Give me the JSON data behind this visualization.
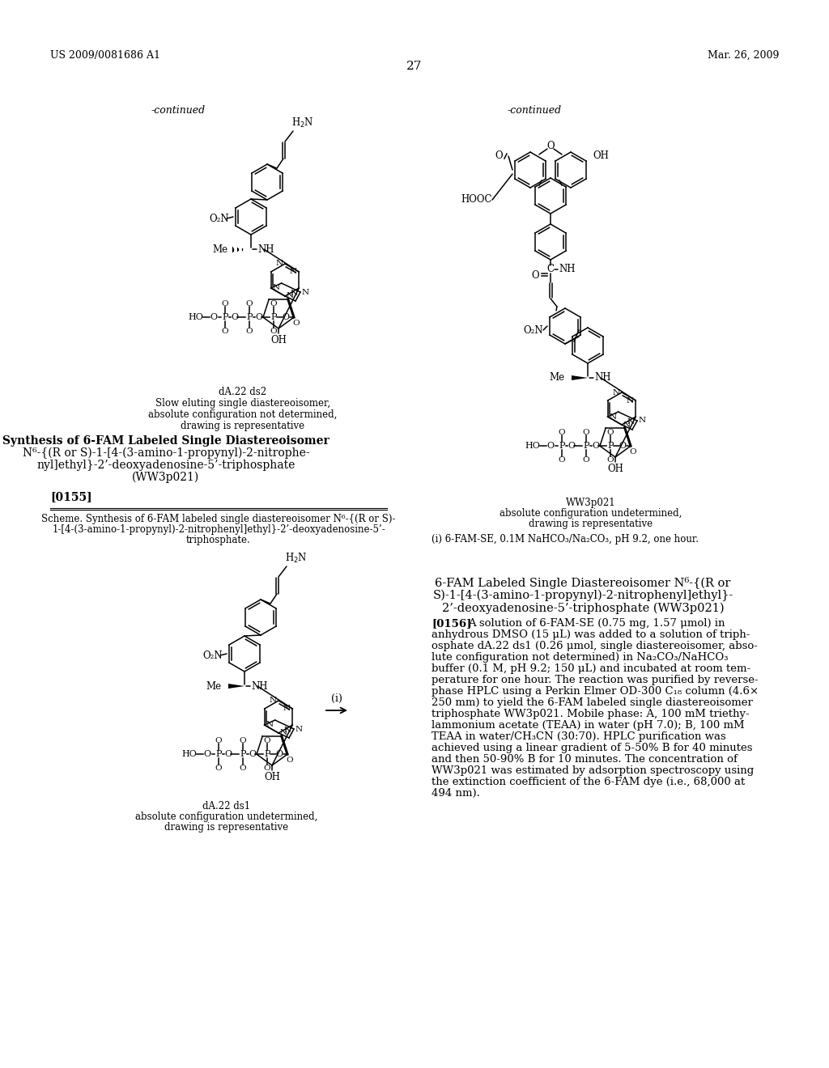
{
  "page_number": "27",
  "header_left": "US 2009/0081686 A1",
  "header_right": "Mar. 26, 2009",
  "continued_left": "-continued",
  "continued_right": "-continued",
  "caption_tl": [
    "dA.22 ds2",
    "Slow eluting single diastereoisomer,",
    "absolute configuration not determined,",
    "drawing is representative"
  ],
  "caption_tr": [
    "WW3p021",
    "absolute configuration undetermined,",
    "drawing is representative"
  ],
  "synthesis_title_lines": [
    "Synthesis of 6-FAM Labeled Single Diastereoisomer",
    "N⁶-{(R or S)-1-[4-(3-amino-1-propynyl)-2-nitrophe-",
    "nyl]ethyl}-2’-deoxyadenosine-5’-triphosphate",
    "(WW3p021)"
  ],
  "paragraph_0155": "[0155]",
  "scheme_lines": [
    "Scheme. Synthesis of 6-FAM labeled single diastereoisomer N⁶-{(R or S)-",
    "1-[4-(3-amino-1-propynyl)-2-nitrophenyl]ethyl}-2’-deoxyadenosine-5’-",
    "triphosphate."
  ],
  "footnote_i": "(i) 6-FAM-SE, 0.1M NaHCO₃/Na₂CO₃, pH 9.2, one hour.",
  "caption_bl": [
    "dA.22 ds1",
    "absolute configuration undetermined,",
    "drawing is representative"
  ],
  "arrow_label": "(i)",
  "section_title_lines": [
    "6-FAM Labeled Single Diastereoisomer N⁶-{(R or",
    "S)-1-[4-(3-amino-1-propynyl)-2-nitrophenyl]ethyl}-",
    "2’-deoxyadenosine-5’-triphosphate (WW3p021)"
  ],
  "para_0156_label": "[0156]",
  "para_0156_lines": [
    "A solution of 6-FAM-SE (0.75 mg, 1.57 μmol) in",
    "anhydrous DMSO (15 μL) was added to a solution of triph-",
    "osphate dA.22 ds1 (0.26 μmol, single diastereoisomer, abso-",
    "lute configuration not determined) in Na₂CO₃/NaHCO₃",
    "buffer (0.1 M, pH 9.2; 150 μL) and incubated at room tem-",
    "perature for one hour. The reaction was purified by reverse-",
    "phase HPLC using a Perkin Elmer OD-300 C₁₈ column (4.6×",
    "250 mm) to yield the 6-FAM labeled single diastereoisomer",
    "triphosphate WW3p021. Mobile phase: A, 100 mM triethy-",
    "lammonium acetate (TEAA) in water (pH 7.0); B, 100 mM",
    "TEAA in water/CH₃CN (30:70). HPLC purification was",
    "achieved using a linear gradient of 5-50% B for 40 minutes",
    "and then 50-90% B for 10 minutes. The concentration of",
    "WW3p021 was estimated by adsorption spectroscopy using",
    "the extinction coefficient of the 6-FAM dye (i.e., 68,000 at",
    "494 nm)."
  ],
  "bg_color": "#ffffff"
}
